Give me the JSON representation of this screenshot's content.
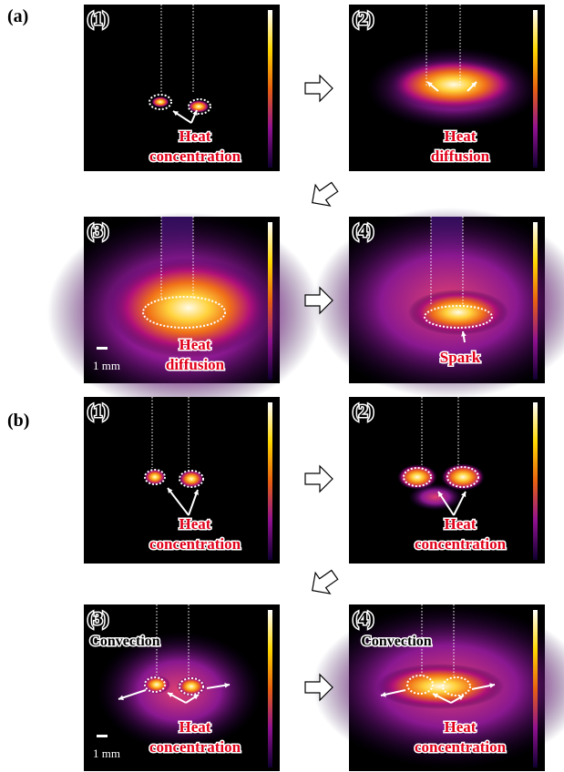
{
  "figure": {
    "labels": [
      "(a)",
      "(b)"
    ],
    "panels": [
      {
        "number": "(1)",
        "caption": [
          "Heat",
          "concentration"
        ]
      },
      {
        "number": "(2)",
        "caption": [
          "Heat",
          "diffusion"
        ]
      },
      {
        "number": "(3)",
        "caption": [
          "Heat",
          "diffusion"
        ],
        "scale": "1 mm"
      },
      {
        "number": "(4)",
        "caption": [
          "Spark"
        ]
      },
      {
        "number": "(1)",
        "caption": [
          "Heat",
          "concentration"
        ]
      },
      {
        "number": "(2)",
        "caption": [
          "Heat",
          "concentration"
        ]
      },
      {
        "number": "(3)",
        "caption": [
          "Heat",
          "concentration"
        ],
        "scale": "1 mm",
        "note": "Convection"
      },
      {
        "number": "(4)",
        "caption": [
          "Heat",
          "concentration"
        ],
        "note": "Convection"
      }
    ]
  }
}
